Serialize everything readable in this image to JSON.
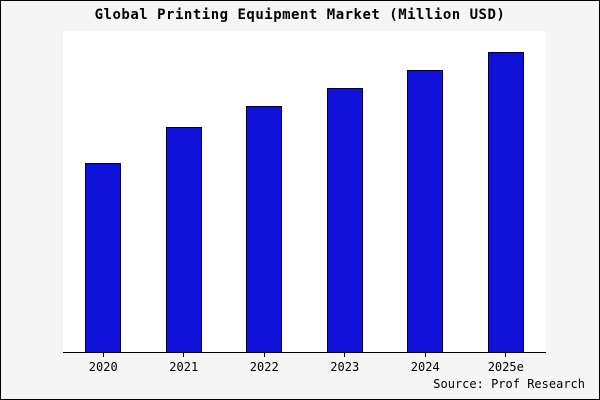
{
  "chart_data": {
    "type": "bar",
    "title": "Global Printing Equipment Market (Million USD)",
    "categories": [
      "2020",
      "2021",
      "2022",
      "2023",
      "2024",
      "2025e"
    ],
    "values": [
      63,
      75,
      82,
      88,
      94,
      100
    ],
    "xlabel": "",
    "ylabel": "",
    "ylim": [
      0,
      107
    ],
    "grid": false,
    "legend": false,
    "bar_fill_color": "#0f10d8",
    "bar_border_color": "#000040",
    "background_color": "#f5f5f5",
    "plot_background_color": "#ffffff"
  },
  "source": {
    "credit": "Source: Prof Research"
  }
}
